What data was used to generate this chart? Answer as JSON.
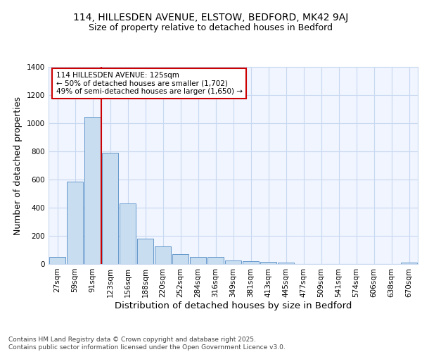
{
  "title1": "114, HILLESDEN AVENUE, ELSTOW, BEDFORD, MK42 9AJ",
  "title2": "Size of property relative to detached houses in Bedford",
  "xlabel": "Distribution of detached houses by size in Bedford",
  "ylabel": "Number of detached properties",
  "categories": [
    "27sqm",
    "59sqm",
    "91sqm",
    "123sqm",
    "156sqm",
    "188sqm",
    "220sqm",
    "252sqm",
    "284sqm",
    "316sqm",
    "349sqm",
    "381sqm",
    "413sqm",
    "445sqm",
    "477sqm",
    "509sqm",
    "541sqm",
    "574sqm",
    "606sqm",
    "638sqm",
    "670sqm"
  ],
  "values": [
    50,
    585,
    1045,
    790,
    430,
    180,
    125,
    70,
    50,
    50,
    25,
    20,
    15,
    8,
    0,
    0,
    0,
    0,
    0,
    0,
    12
  ],
  "bar_color": "#c8ddf0",
  "bar_edge_color": "#6699cc",
  "vline_color": "#cc0000",
  "annotation_text": "114 HILLESDEN AVENUE: 125sqm\n← 50% of detached houses are smaller (1,702)\n49% of semi-detached houses are larger (1,650) →",
  "annotation_box_edge_color": "#cc0000",
  "ylim": [
    0,
    1400
  ],
  "yticks": [
    0,
    200,
    400,
    600,
    800,
    1000,
    1200,
    1400
  ],
  "bg_color": "#ffffff",
  "plot_bg_color": "#f0f5ff",
  "grid_color": "#c8d8f0",
  "footer_text": "Contains HM Land Registry data © Crown copyright and database right 2025.\nContains public sector information licensed under the Open Government Licence v3.0.",
  "title_fontsize": 10,
  "subtitle_fontsize": 9,
  "axis_label_fontsize": 9,
  "tick_fontsize": 7.5,
  "annotation_fontsize": 7.5,
  "footer_fontsize": 6.5
}
